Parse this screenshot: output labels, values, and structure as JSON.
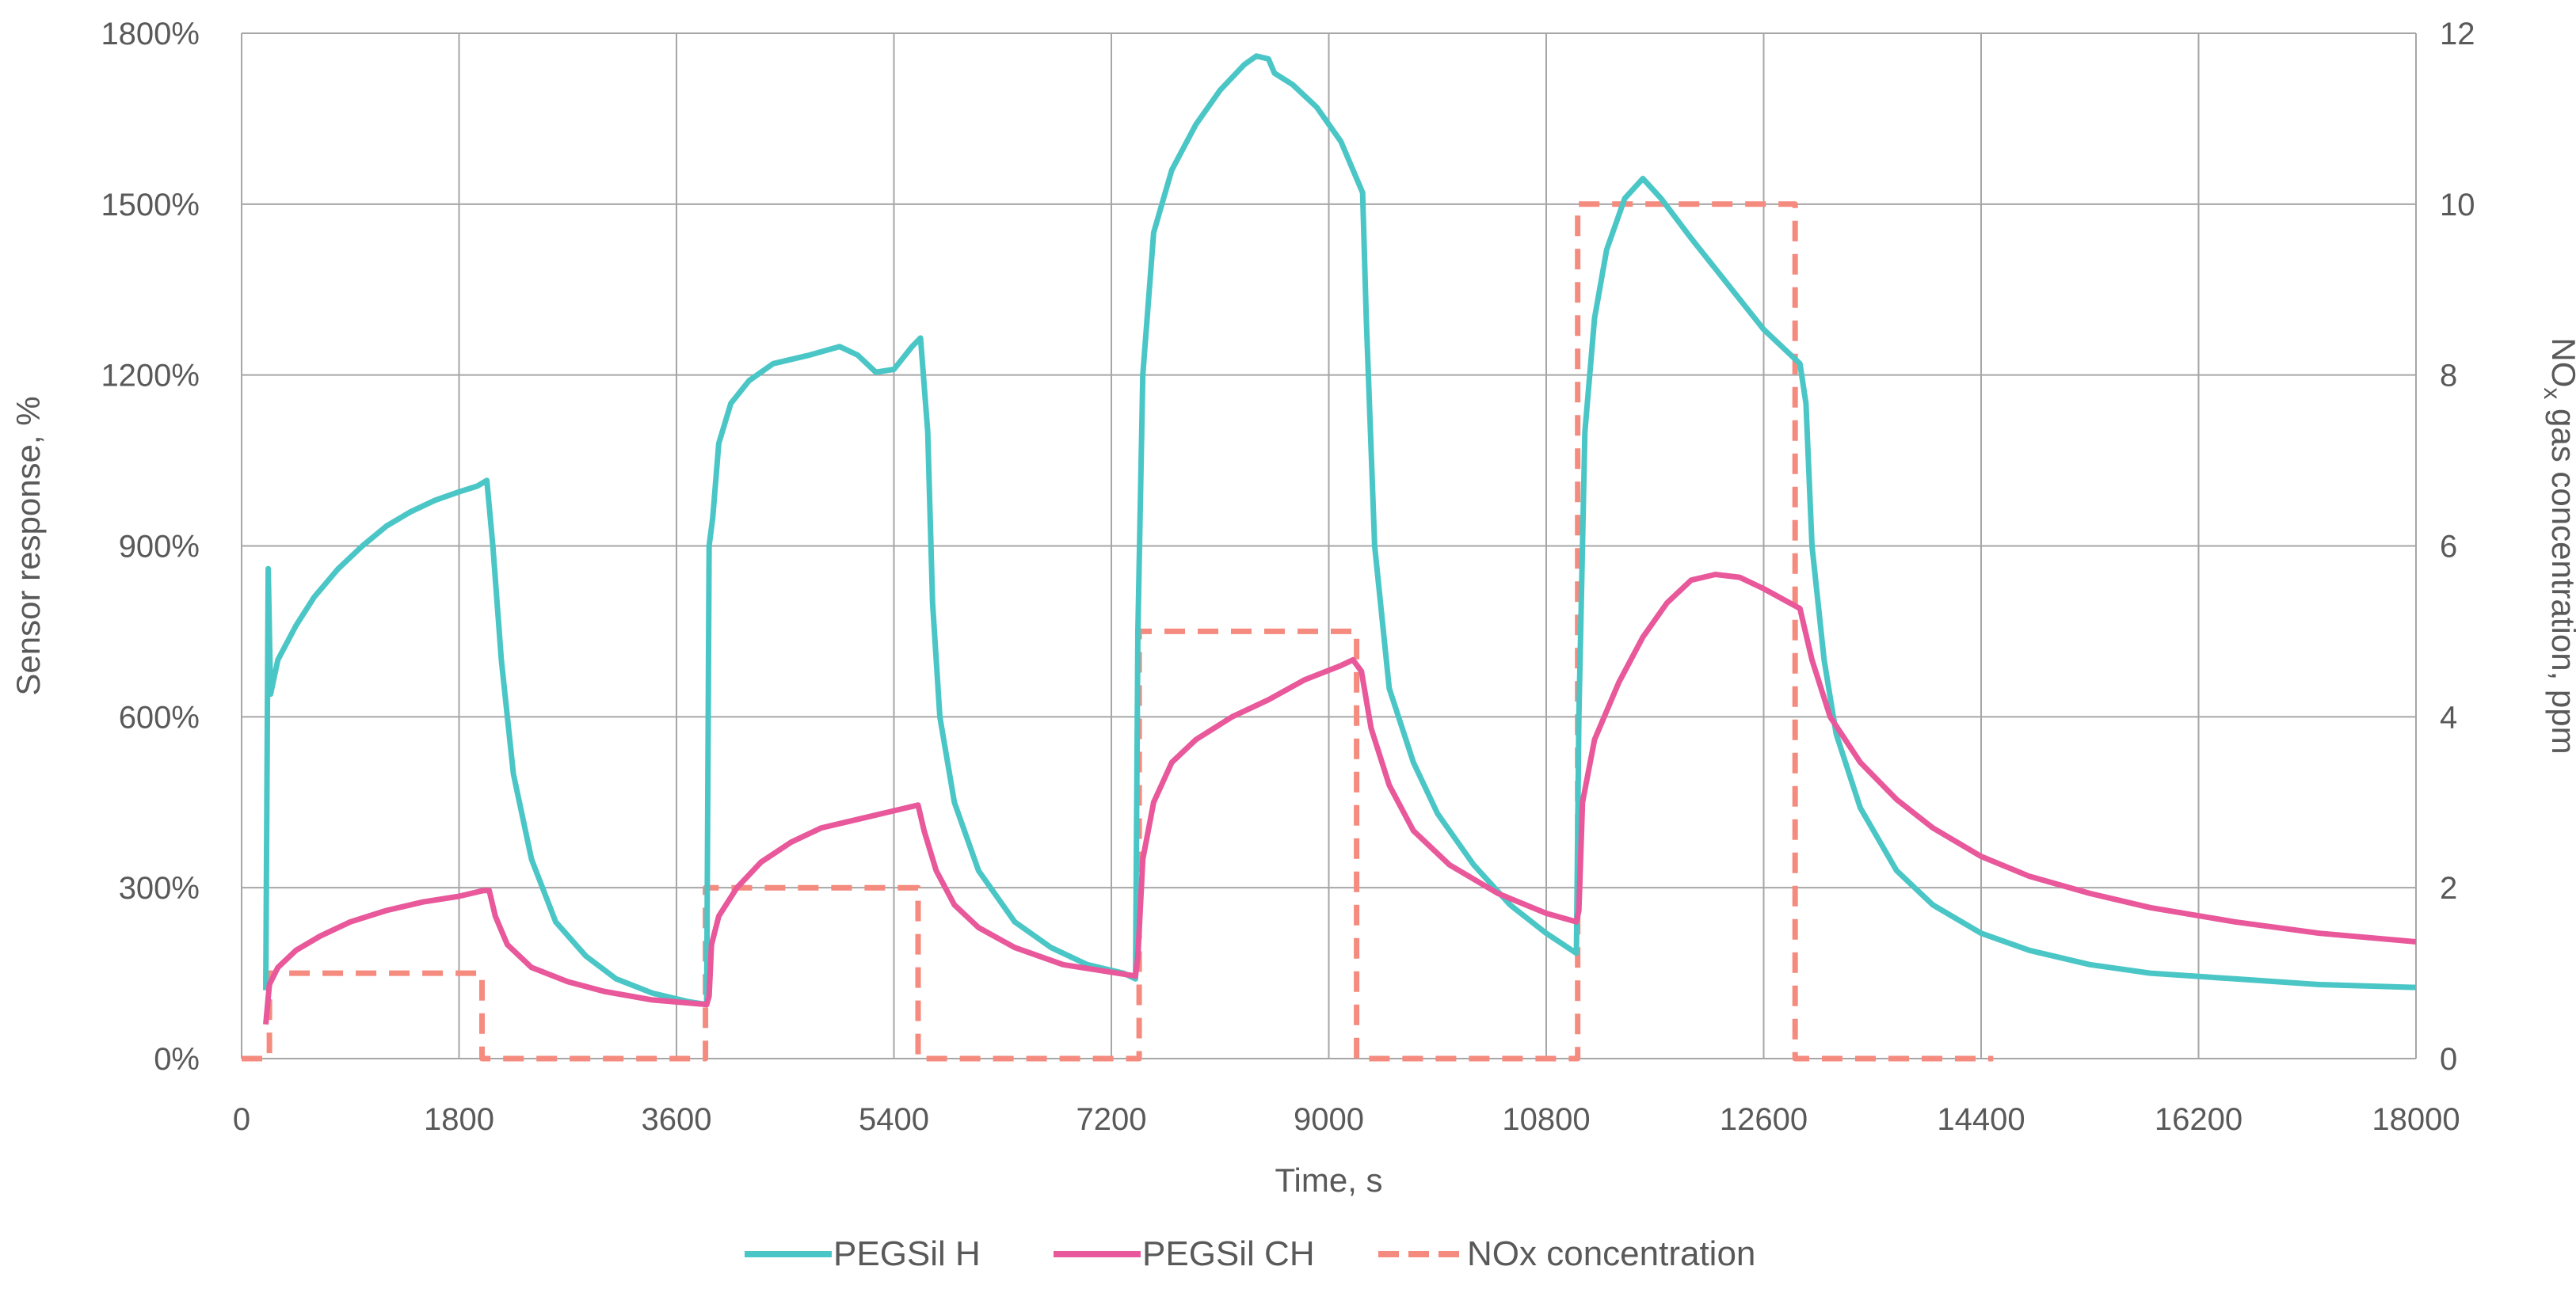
{
  "chart_data": {
    "type": "line",
    "title": "",
    "xlabel": "Time, s",
    "ylabel": "Sensor response, %",
    "y2label": "NOx gas concentration, ppm",
    "y2label_parts": [
      "NO",
      "x",
      " gas concentration, ppm"
    ],
    "xlim": [
      0,
      18000
    ],
    "ylim": [
      0,
      1800
    ],
    "y2lim": [
      0,
      12
    ],
    "x_ticks": [
      "0",
      "1800",
      "3600",
      "5400",
      "7200",
      "9000",
      "10800",
      "12600",
      "14400",
      "16200",
      "18000"
    ],
    "x_tick_values": [
      0,
      1800,
      3600,
      5400,
      7200,
      9000,
      10800,
      12600,
      14400,
      16200,
      18000
    ],
    "y_ticks": [
      "0%",
      "300%",
      "600%",
      "900%",
      "1200%",
      "1500%",
      "1800%"
    ],
    "y_tick_values": [
      0,
      300,
      600,
      900,
      1200,
      1500,
      1800
    ],
    "y2_ticks": [
      "0",
      "2",
      "4",
      "6",
      "8",
      "10",
      "12"
    ],
    "y2_tick_values": [
      0,
      2,
      4,
      6,
      8,
      10,
      12
    ],
    "grid": true,
    "legend_position": "bottom",
    "series": [
      {
        "name": "PEGSil H",
        "axis": "left",
        "color": "#4bc6c6",
        "dash": "solid",
        "points": [
          [
            200,
            120
          ],
          [
            220,
            860
          ],
          [
            240,
            640
          ],
          [
            300,
            700
          ],
          [
            450,
            760
          ],
          [
            600,
            810
          ],
          [
            800,
            860
          ],
          [
            1000,
            900
          ],
          [
            1200,
            935
          ],
          [
            1400,
            960
          ],
          [
            1600,
            980
          ],
          [
            1800,
            995
          ],
          [
            1950,
            1005
          ],
          [
            2030,
            1015
          ],
          [
            2080,
            900
          ],
          [
            2150,
            700
          ],
          [
            2250,
            500
          ],
          [
            2400,
            350
          ],
          [
            2600,
            240
          ],
          [
            2850,
            180
          ],
          [
            3100,
            140
          ],
          [
            3400,
            115
          ],
          [
            3700,
            100
          ],
          [
            3850,
            95
          ],
          [
            3870,
            900
          ],
          [
            3900,
            950
          ],
          [
            3950,
            1080
          ],
          [
            4050,
            1150
          ],
          [
            4200,
            1190
          ],
          [
            4400,
            1220
          ],
          [
            4700,
            1235
          ],
          [
            4950,
            1250
          ],
          [
            5100,
            1235
          ],
          [
            5250,
            1205
          ],
          [
            5400,
            1210
          ],
          [
            5550,
            1250
          ],
          [
            5620,
            1265
          ],
          [
            5680,
            1100
          ],
          [
            5720,
            800
          ],
          [
            5780,
            600
          ],
          [
            5900,
            450
          ],
          [
            6100,
            330
          ],
          [
            6400,
            240
          ],
          [
            6700,
            195
          ],
          [
            7000,
            165
          ],
          [
            7300,
            150
          ],
          [
            7400,
            140
          ],
          [
            7420,
            750
          ],
          [
            7460,
            1200
          ],
          [
            7550,
            1450
          ],
          [
            7700,
            1560
          ],
          [
            7900,
            1640
          ],
          [
            8100,
            1700
          ],
          [
            8300,
            1745
          ],
          [
            8400,
            1760
          ],
          [
            8500,
            1755
          ],
          [
            8550,
            1730
          ],
          [
            8700,
            1710
          ],
          [
            8900,
            1670
          ],
          [
            9100,
            1610
          ],
          [
            9280,
            1520
          ],
          [
            9310,
            1300
          ],
          [
            9380,
            900
          ],
          [
            9500,
            650
          ],
          [
            9700,
            520
          ],
          [
            9900,
            430
          ],
          [
            10200,
            340
          ],
          [
            10500,
            270
          ],
          [
            10800,
            220
          ],
          [
            11050,
            185
          ],
          [
            11070,
            600
          ],
          [
            11120,
            1100
          ],
          [
            11200,
            1300
          ],
          [
            11300,
            1420
          ],
          [
            11450,
            1510
          ],
          [
            11600,
            1545
          ],
          [
            11750,
            1510
          ],
          [
            12000,
            1440
          ],
          [
            12300,
            1360
          ],
          [
            12600,
            1280
          ],
          [
            12900,
            1220
          ],
          [
            12950,
            1150
          ],
          [
            13000,
            900
          ],
          [
            13100,
            700
          ],
          [
            13200,
            570
          ],
          [
            13400,
            440
          ],
          [
            13700,
            330
          ],
          [
            14000,
            270
          ],
          [
            14400,
            220
          ],
          [
            14800,
            190
          ],
          [
            15300,
            165
          ],
          [
            15800,
            150
          ],
          [
            16500,
            140
          ],
          [
            17200,
            130
          ],
          [
            18000,
            125
          ]
        ]
      },
      {
        "name": "PEGSil CH",
        "axis": "left",
        "color": "#e8589a",
        "dash": "solid",
        "points": [
          [
            200,
            60
          ],
          [
            230,
            130
          ],
          [
            300,
            160
          ],
          [
            450,
            190
          ],
          [
            650,
            215
          ],
          [
            900,
            240
          ],
          [
            1200,
            260
          ],
          [
            1500,
            275
          ],
          [
            1800,
            285
          ],
          [
            2000,
            295
          ],
          [
            2050,
            295
          ],
          [
            2100,
            250
          ],
          [
            2200,
            200
          ],
          [
            2400,
            160
          ],
          [
            2700,
            135
          ],
          [
            3000,
            118
          ],
          [
            3400,
            103
          ],
          [
            3850,
            95
          ],
          [
            3870,
            110
          ],
          [
            3890,
            200
          ],
          [
            3950,
            250
          ],
          [
            4100,
            300
          ],
          [
            4300,
            345
          ],
          [
            4550,
            380
          ],
          [
            4800,
            405
          ],
          [
            5100,
            420
          ],
          [
            5400,
            435
          ],
          [
            5600,
            445
          ],
          [
            5650,
            400
          ],
          [
            5750,
            330
          ],
          [
            5900,
            270
          ],
          [
            6100,
            230
          ],
          [
            6400,
            195
          ],
          [
            6800,
            165
          ],
          [
            7400,
            145
          ],
          [
            7420,
            180
          ],
          [
            7460,
            350
          ],
          [
            7550,
            450
          ],
          [
            7700,
            520
          ],
          [
            7900,
            560
          ],
          [
            8200,
            600
          ],
          [
            8500,
            630
          ],
          [
            8800,
            665
          ],
          [
            9100,
            690
          ],
          [
            9200,
            700
          ],
          [
            9270,
            680
          ],
          [
            9350,
            580
          ],
          [
            9500,
            480
          ],
          [
            9700,
            400
          ],
          [
            10000,
            340
          ],
          [
            10400,
            290
          ],
          [
            10800,
            255
          ],
          [
            11050,
            240
          ],
          [
            11070,
            260
          ],
          [
            11100,
            450
          ],
          [
            11200,
            560
          ],
          [
            11400,
            660
          ],
          [
            11600,
            740
          ],
          [
            11800,
            800
          ],
          [
            12000,
            840
          ],
          [
            12200,
            850
          ],
          [
            12400,
            845
          ],
          [
            12600,
            825
          ],
          [
            12900,
            790
          ],
          [
            13000,
            700
          ],
          [
            13150,
            600
          ],
          [
            13400,
            520
          ],
          [
            13700,
            455
          ],
          [
            14000,
            405
          ],
          [
            14400,
            355
          ],
          [
            14800,
            320
          ],
          [
            15300,
            290
          ],
          [
            15800,
            265
          ],
          [
            16500,
            240
          ],
          [
            17200,
            220
          ],
          [
            18000,
            205
          ]
        ]
      },
      {
        "name": "NOx concentration",
        "axis": "right",
        "color": "#f58a7f",
        "dash": "dashed",
        "points": [
          [
            0,
            0
          ],
          [
            230,
            0
          ],
          [
            230,
            1
          ],
          [
            1990,
            1
          ],
          [
            1990,
            0
          ],
          [
            3840,
            0
          ],
          [
            3840,
            2
          ],
          [
            5600,
            2
          ],
          [
            5600,
            0
          ],
          [
            7430,
            0
          ],
          [
            7430,
            5
          ],
          [
            9230,
            5
          ],
          [
            9230,
            0
          ],
          [
            11060,
            0
          ],
          [
            11060,
            10
          ],
          [
            12860,
            10
          ],
          [
            12860,
            0
          ],
          [
            14500,
            0
          ]
        ]
      }
    ]
  }
}
